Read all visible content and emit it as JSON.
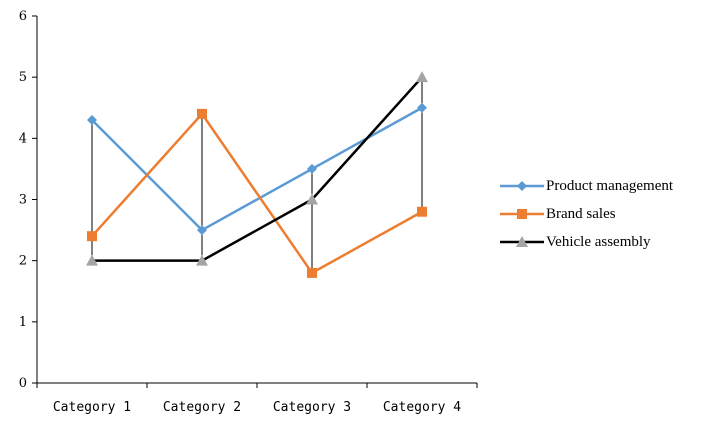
{
  "chart_data": {
    "type": "line",
    "categories": [
      "Category 1",
      "Category 2",
      "Category 3",
      "Category 4"
    ],
    "ylim": [
      0,
      6
    ],
    "yticks": [
      0,
      1,
      2,
      3,
      4,
      5,
      6
    ],
    "title": "",
    "xlabel": "",
    "ylabel": "",
    "grid": false,
    "legend_position": "right",
    "high_low_lines": true,
    "series": [
      {
        "name": "Product management",
        "values": [
          4.3,
          2.5,
          3.5,
          4.5
        ],
        "color": "#5b9bd5",
        "marker": "diamond"
      },
      {
        "name": "Brand sales",
        "values": [
          2.4,
          4.4,
          1.8,
          2.8
        ],
        "color": "#ed7d31",
        "marker": "square"
      },
      {
        "name": "Vehicle assembly",
        "values": [
          2.0,
          2.0,
          3.0,
          5.0
        ],
        "color": "#000000",
        "marker": "triangle",
        "marker_color": "#a5a5a5"
      }
    ]
  }
}
